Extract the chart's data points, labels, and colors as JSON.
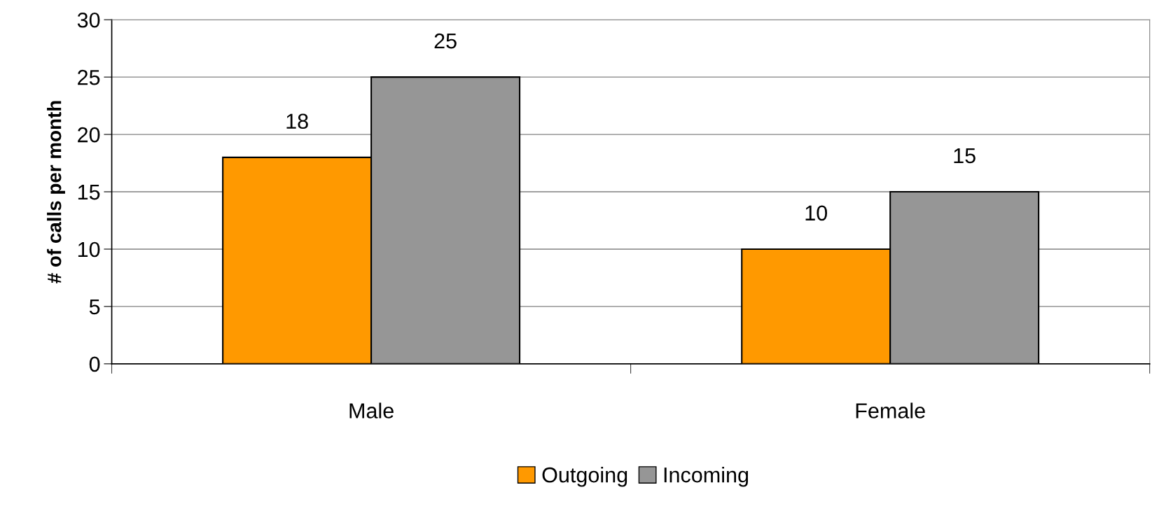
{
  "chart_data": {
    "type": "bar",
    "ylabel": "# of calls per month",
    "categories": [
      "Male",
      "Female"
    ],
    "series": [
      {
        "name": "Outgoing",
        "color": "#ff9900",
        "values": [
          18,
          10
        ]
      },
      {
        "name": "Incoming",
        "color": "#969696",
        "values": [
          25,
          15
        ]
      }
    ],
    "ylim": [
      0,
      30
    ],
    "yticks": [
      0,
      5,
      10,
      15,
      20,
      25,
      30
    ],
    "grid": "y",
    "legend": "bottom",
    "data_labels": true
  }
}
